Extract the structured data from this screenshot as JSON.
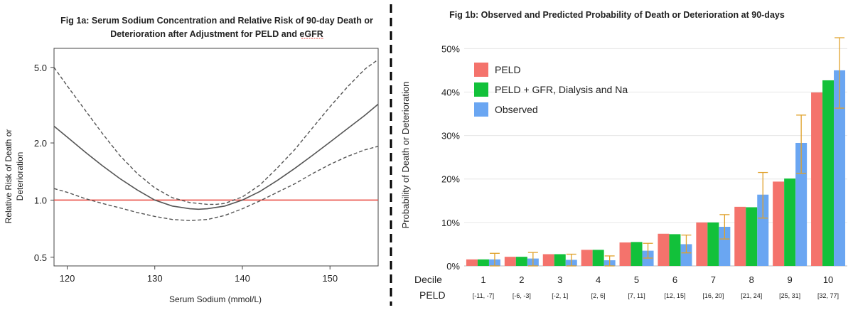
{
  "colors": {
    "reference_line": "#e8453c",
    "curve": "#555555",
    "divider": "#000000",
    "peld": "#f4736c",
    "peld_gfr": "#12c13a",
    "observed": "#6aa6f2",
    "error_bar": "#e0a12a"
  },
  "chart_data": [
    {
      "type": "line",
      "title_line1": "Fig 1a: Serum Sodium Concentration and Relative Risk of 90-day Death or",
      "title_line2": "Deterioration after Adjustment for PELD and eGFR",
      "xlabel": "Serum Sodium (mmol/L)",
      "ylabel_line1": "Relative Risk of Death or",
      "ylabel_line2": "Deterioration",
      "y_scale": "log",
      "xlim": [
        118.5,
        155.5
      ],
      "ylim": [
        0.45,
        6.3
      ],
      "x_ticks": [
        120,
        130,
        140,
        150
      ],
      "y_ticks": [
        0.5,
        1.0,
        2.0,
        5.0
      ],
      "y_tick_labels": [
        "0.5",
        "1.0",
        "2.0",
        "5.0"
      ],
      "reference_y": 1.0,
      "series": [
        {
          "role": "estimate",
          "style": "solid",
          "x": [
            118.5,
            120,
            122,
            124,
            126,
            128,
            130,
            132,
            134,
            135,
            136,
            138,
            140,
            142,
            144,
            146,
            148,
            150,
            152,
            154,
            155.5
          ],
          "y": [
            2.45,
            2.15,
            1.8,
            1.52,
            1.3,
            1.13,
            1.0,
            0.93,
            0.9,
            0.895,
            0.9,
            0.93,
            1.0,
            1.11,
            1.27,
            1.47,
            1.72,
            2.02,
            2.38,
            2.8,
            3.2
          ]
        },
        {
          "role": "upper_ci",
          "style": "dashed",
          "x": [
            118.5,
            120,
            122,
            124,
            126,
            128,
            130,
            132,
            134,
            136,
            137,
            138,
            140,
            142,
            144,
            146,
            148,
            150,
            152,
            154,
            155.5
          ],
          "y": [
            5.0,
            4.0,
            3.0,
            2.25,
            1.72,
            1.38,
            1.16,
            1.03,
            0.97,
            0.95,
            0.95,
            0.96,
            1.04,
            1.2,
            1.48,
            1.85,
            2.4,
            3.1,
            3.95,
            4.9,
            5.5
          ]
        },
        {
          "role": "lower_ci",
          "style": "dashed",
          "x": [
            118.5,
            120,
            122,
            124,
            126,
            128,
            130,
            132,
            134,
            136,
            138,
            140,
            142,
            144,
            146,
            148,
            150,
            152,
            154,
            155.5
          ],
          "y": [
            1.15,
            1.1,
            1.02,
            0.96,
            0.91,
            0.86,
            0.82,
            0.79,
            0.78,
            0.79,
            0.83,
            0.9,
            0.99,
            1.1,
            1.22,
            1.38,
            1.54,
            1.7,
            1.84,
            1.92
          ]
        }
      ]
    },
    {
      "type": "bar",
      "title": "Fig 1b: Observed and Predicted Probability of Death or Deterioration at 90-days",
      "ylabel": "Probability of Death or Deterioration",
      "ylim": [
        0,
        0.53
      ],
      "y_ticks": [
        0,
        0.1,
        0.2,
        0.3,
        0.4,
        0.5
      ],
      "y_tick_labels": [
        "0%",
        "10%",
        "20%",
        "30%",
        "40%",
        "50%"
      ],
      "grid": true,
      "legend_position": "top-left",
      "row_label_decile": "Decile",
      "row_label_peld": "PELD",
      "categories": [
        "1",
        "2",
        "3",
        "4",
        "5",
        "6",
        "7",
        "8",
        "9",
        "10"
      ],
      "peld_ranges": [
        "[-11, -7]",
        "[-6, -3]",
        "[-2, 1]",
        "[2, 6]",
        "[7, 11]",
        "[12, 15]",
        "[16, 20]",
        "[21, 24]",
        "[25, 31]",
        "[32, 77]"
      ],
      "series": [
        {
          "name": "PELD",
          "values": [
            0.015,
            0.021,
            0.027,
            0.037,
            0.054,
            0.074,
            0.1,
            0.136,
            0.194,
            0.399
          ]
        },
        {
          "name": "PELD + GFR, Dialysis and Na",
          "values": [
            0.015,
            0.021,
            0.027,
            0.037,
            0.055,
            0.073,
            0.1,
            0.135,
            0.201,
            0.427
          ]
        },
        {
          "name": "Observed",
          "values": [
            0.015,
            0.017,
            0.014,
            0.013,
            0.035,
            0.05,
            0.09,
            0.164,
            0.283,
            0.45
          ],
          "error_low": [
            0.0,
            0.0,
            0.0,
            0.0,
            0.018,
            0.03,
            0.062,
            0.11,
            0.213,
            0.363
          ],
          "error_high": [
            0.029,
            0.031,
            0.027,
            0.023,
            0.052,
            0.071,
            0.118,
            0.215,
            0.347,
            0.525
          ]
        }
      ]
    }
  ]
}
